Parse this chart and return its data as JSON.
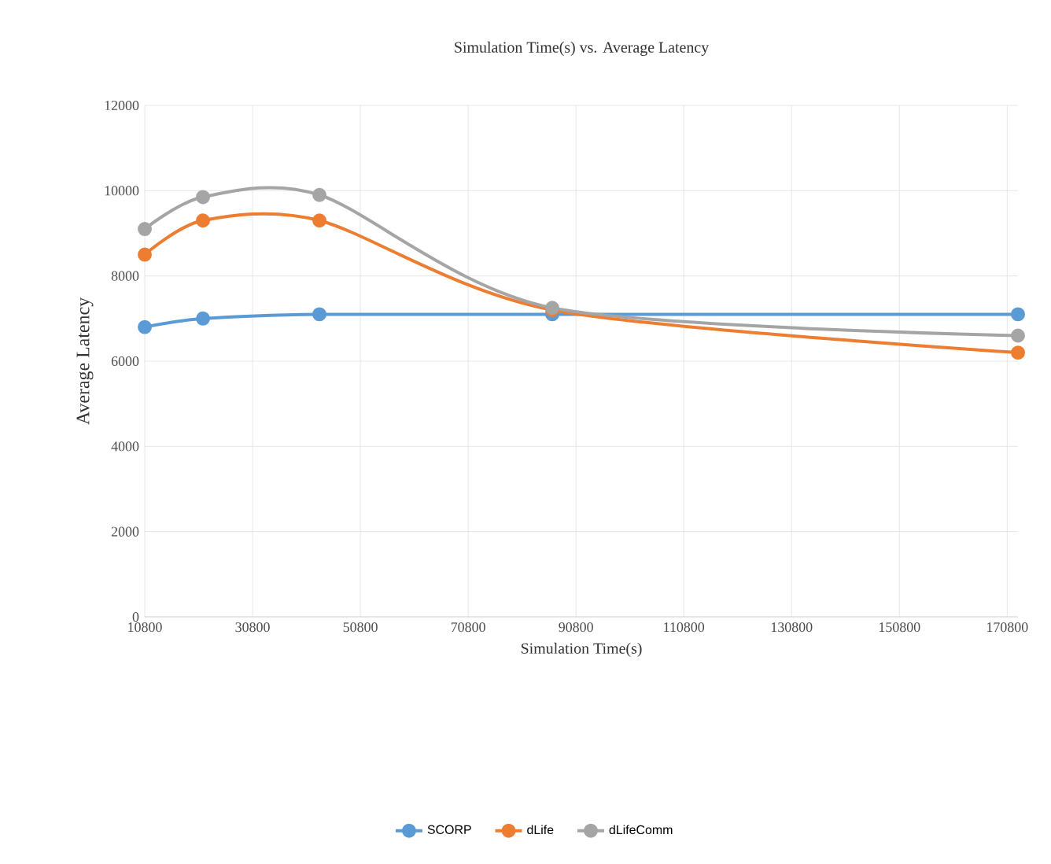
{
  "chart_data": {
    "type": "line",
    "title": "Simulation Time(s) vs. Average Latency",
    "xlabel": "Simulation Time(s)",
    "ylabel": "Average Latency",
    "xlim": [
      10800,
      172800
    ],
    "xticks": [
      10800,
      30800,
      50800,
      70800,
      90800,
      110800,
      130800,
      150800,
      170800
    ],
    "ylim": [
      0,
      12000
    ],
    "yticks": [
      0,
      2000,
      4000,
      6000,
      8000,
      10000,
      12000
    ],
    "x": [
      10800,
      21600,
      43200,
      86400,
      172800
    ],
    "series": [
      {
        "name": "SCORP",
        "color": "#5b9bd5",
        "values": [
          6800,
          7000,
          7100,
          7100,
          7100
        ]
      },
      {
        "name": "dLife",
        "color": "#ed7d31",
        "values": [
          8500,
          9300,
          9300,
          7200,
          6200
        ]
      },
      {
        "name": "dLifeComm",
        "color": "#a5a5a5",
        "values": [
          9100,
          9850,
          9900,
          7250,
          6600
        ]
      }
    ],
    "grid": true,
    "legend": "bottom",
    "marker": "circle",
    "line_style": "solid"
  }
}
